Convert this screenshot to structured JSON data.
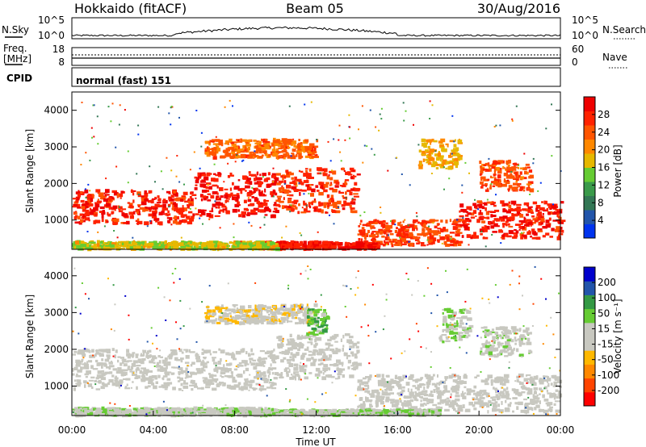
{
  "header": {
    "title": "Hokkaido (fitACF)",
    "beam": "Beam 05",
    "date": "30/Aug/2016"
  },
  "noise_panel": {
    "left_label": "N.Sky",
    "right_label": "N.Search",
    "left_ticks": [
      "10^5",
      "10^0"
    ],
    "right_ticks": [
      "10^5",
      "10^0"
    ]
  },
  "freq_panel": {
    "left_label_line1": "Freq.",
    "left_label_line2": "[MHz]",
    "right_label": "Nave",
    "left_ticks": [
      "18",
      "8"
    ],
    "right_ticks": [
      "60",
      "0"
    ]
  },
  "cpid_panel": {
    "label": "CPID",
    "mode_text": "normal (fast) 151"
  },
  "colors": {
    "power_scale": [
      "#0033ee",
      "#2255aa",
      "#337755",
      "#3a9a4a",
      "#66cc33",
      "#e6b800",
      "#ff8800",
      "#ff5500",
      "#ff2200",
      "#ee0000"
    ],
    "velocity_scale": [
      "#ff0000",
      "#ff4400",
      "#ff8800",
      "#ffb800",
      "#c8c8c0",
      "#c8c8c0",
      "#66cc33",
      "#339944",
      "#2255aa",
      "#0000cc"
    ]
  },
  "chart_data": [
    {
      "type": "heatmap",
      "name": "power",
      "xlabel": "",
      "ylabel": "Slant Range [km]",
      "yticks": [
        "1000",
        "2000",
        "3000",
        "4000"
      ],
      "ylim": [
        200,
        4500
      ],
      "xlim": [
        0,
        24
      ],
      "colorbar_label": "Power [dB]",
      "colorbar_ticks": [
        "28",
        "24",
        "20",
        "16",
        "12",
        "8",
        "4"
      ],
      "regions": [
        {
          "t0": 0.0,
          "t1": 6.0,
          "r0": 900,
          "r1": 1800,
          "value": 26
        },
        {
          "t0": 6.0,
          "t1": 10.0,
          "r0": 1100,
          "r1": 2300,
          "value": 27
        },
        {
          "t0": 10.0,
          "t1": 14.0,
          "r0": 1200,
          "r1": 2400,
          "value": 25
        },
        {
          "t0": 6.5,
          "t1": 12.0,
          "r0": 2700,
          "r1": 3200,
          "value": 22
        },
        {
          "t0": 14.0,
          "t1": 19.0,
          "r0": 300,
          "r1": 1000,
          "value": 24
        },
        {
          "t0": 19.0,
          "t1": 24.0,
          "r0": 500,
          "r1": 1500,
          "value": 26
        },
        {
          "t0": 20.0,
          "t1": 22.5,
          "r0": 1800,
          "r1": 2600,
          "value": 23
        },
        {
          "t0": 9.0,
          "t1": 15.0,
          "r0": 200,
          "r1": 400,
          "value": 27
        },
        {
          "t0": 17.0,
          "t1": 19.0,
          "r0": 2400,
          "r1": 3200,
          "value": 18
        },
        {
          "t0": 0.0,
          "t1": 10.0,
          "r0": 200,
          "r1": 400,
          "value": 16
        }
      ]
    },
    {
      "type": "heatmap",
      "name": "velocity",
      "xlabel": "Time UT",
      "ylabel": "Slant Range [km]",
      "xticks": [
        "00:00",
        "04:00",
        "08:00",
        "12:00",
        "16:00",
        "20:00",
        "00:00"
      ],
      "yticks": [
        "1000",
        "2000",
        "3000",
        "4000"
      ],
      "ylim": [
        200,
        4500
      ],
      "xlim": [
        0,
        24
      ],
      "colorbar_label": "Velocity [m s⁻¹]",
      "colorbar_ticks": [
        "200",
        "100",
        "50",
        "15",
        "-15",
        "-50",
        "-100",
        "-200"
      ],
      "regions": [
        {
          "t0": 0.0,
          "t1": 10.0,
          "r0": 900,
          "r1": 2000,
          "value": 0
        },
        {
          "t0": 10.0,
          "t1": 14.0,
          "r0": 1200,
          "r1": 2400,
          "value": 0
        },
        {
          "t0": 6.5,
          "t1": 12.0,
          "r0": 2700,
          "r1": 3200,
          "value": -30
        },
        {
          "t0": 14.0,
          "t1": 24.0,
          "r0": 300,
          "r1": 1300,
          "value": 0
        },
        {
          "t0": 9.0,
          "t1": 14.0,
          "r0": 200,
          "r1": 350,
          "value": 30
        },
        {
          "t0": 14.0,
          "t1": 18.0,
          "r0": 200,
          "r1": 350,
          "value": 40
        },
        {
          "t0": 11.5,
          "t1": 12.5,
          "r0": 2400,
          "r1": 3100,
          "value": 80
        },
        {
          "t0": 18.0,
          "t1": 19.5,
          "r0": 2200,
          "r1": 3100,
          "value": 30
        },
        {
          "t0": 20.0,
          "t1": 22.5,
          "r0": 1800,
          "r1": 2600,
          "value": 20
        },
        {
          "t0": 0.0,
          "t1": 10.0,
          "r0": 200,
          "r1": 400,
          "value": 30
        }
      ]
    }
  ]
}
